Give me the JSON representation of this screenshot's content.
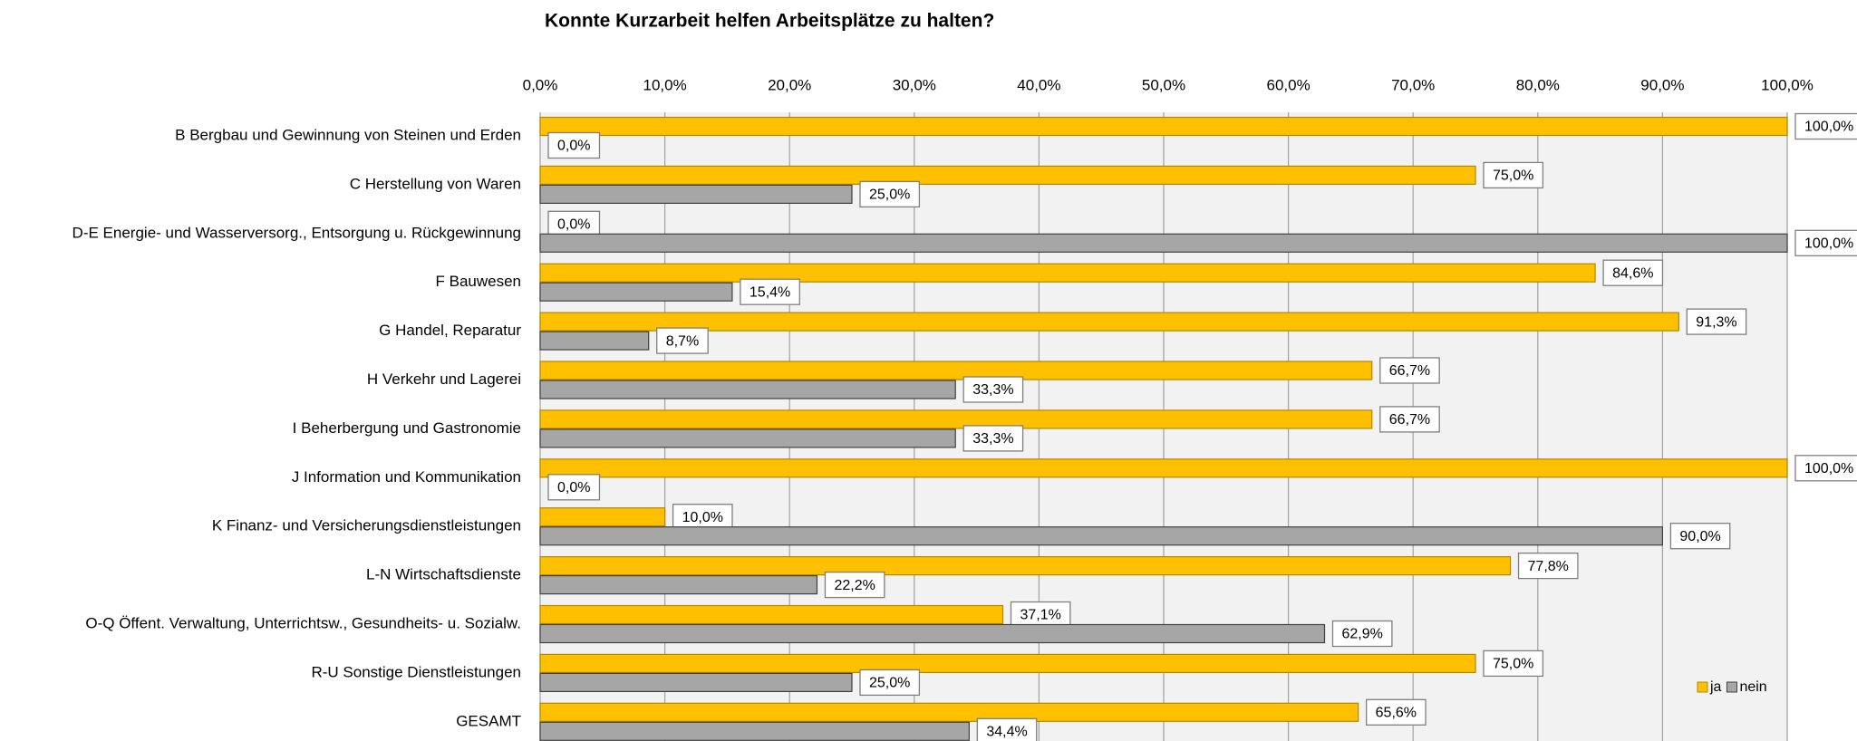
{
  "chart_data": {
    "type": "hbar",
    "title": "Konnte Kurzarbeit helfen Arbeitsplätze zu halten?",
    "categories": [
      "B Bergbau und Gewinnung von Steinen und Erden",
      "C Herstellung von Waren",
      "D-E Energie- und Wasserversorg., Entsorgung u. Rückgewinnung",
      "F Bauwesen",
      "G Handel, Reparatur",
      "H Verkehr und Lagerei",
      "I Beherbergung und Gastronomie",
      "J Information und Kommunikation",
      "K Finanz- und Versicherungsdienstleistungen",
      "L-N Wirtschaftsdienste",
      "O-Q Öffent. Verwaltung, Unterrichtsw., Gesundheits- u. Sozialw.",
      "R-U Sonstige Dienstleistungen",
      "GESAMT"
    ],
    "series": [
      {
        "name": "ja",
        "color": "#ffc000",
        "values": [
          100,
          75,
          0,
          84.6,
          91.3,
          66.7,
          66.7,
          100,
          10,
          77.8,
          37.1,
          75,
          65.6
        ],
        "value_labels": [
          "100,0%",
          "75,0%",
          "0,0%",
          "84,6%",
          "91,3%",
          "66,7%",
          "66,7%",
          "100,0%",
          "10,0%",
          "77,8%",
          "37,1%",
          "75,0%",
          "65,6%"
        ]
      },
      {
        "name": "nein",
        "color": "#a6a6a6",
        "values": [
          0,
          25,
          100,
          15.4,
          8.7,
          33.3,
          33.3,
          0,
          90,
          22.2,
          62.9,
          25,
          34.4
        ],
        "value_labels": [
          "0,0%",
          "25,0%",
          "100,0%",
          "15,4%",
          "8,7%",
          "33,3%",
          "33,3%",
          "0,0%",
          "90,0%",
          "22,2%",
          "62,9%",
          "25,0%",
          "34,4%"
        ]
      }
    ],
    "xlim": [
      0,
      100
    ],
    "xticks": [
      {
        "value": 0,
        "label": "0,0%"
      },
      {
        "value": 10,
        "label": "10,0%"
      },
      {
        "value": 20,
        "label": "20,0%"
      },
      {
        "value": 30,
        "label": "30,0%"
      },
      {
        "value": 40,
        "label": "40,0%"
      },
      {
        "value": 50,
        "label": "50,0%"
      },
      {
        "value": 60,
        "label": "60,0%"
      },
      {
        "value": 70,
        "label": "70,0%"
      },
      {
        "value": 80,
        "label": "80,0%"
      },
      {
        "value": 90,
        "label": "90,0%"
      },
      {
        "value": 100,
        "label": "100,0%"
      }
    ],
    "grid": true,
    "legend": "bottom-right"
  }
}
